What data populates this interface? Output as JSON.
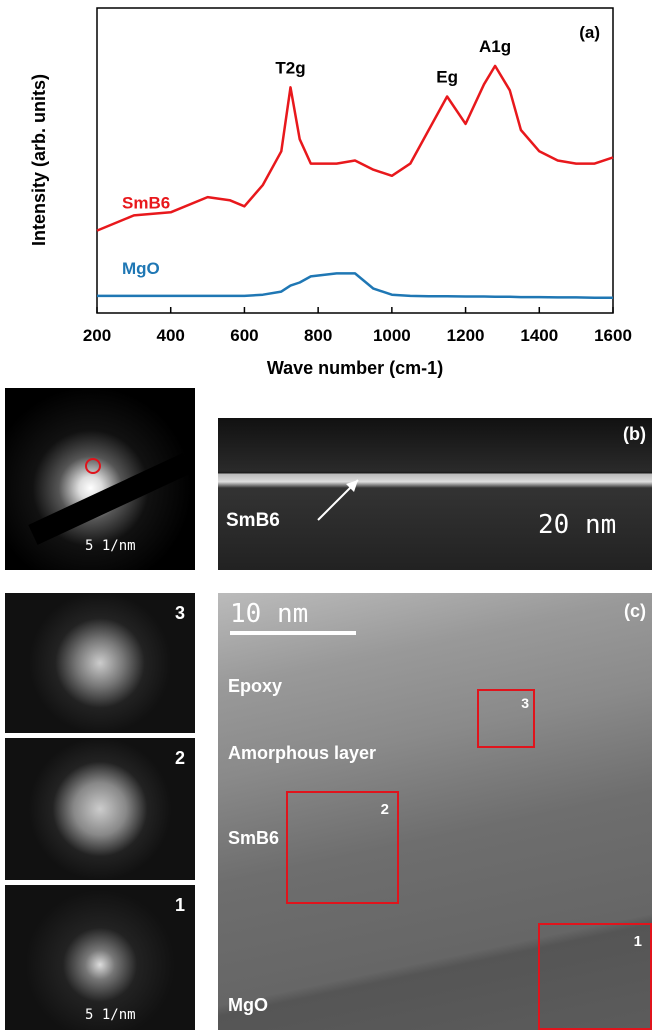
{
  "chart_data": {
    "type": "line",
    "panel_label": "(a)",
    "xlabel": "Wave number (cm-1)",
    "ylabel": "Intensity (arb. units)",
    "xlim": [
      200,
      1600
    ],
    "xticks": [
      200,
      400,
      600,
      800,
      1000,
      1200,
      1400,
      1600
    ],
    "ylim": [
      0,
      100
    ],
    "x": [
      200,
      300,
      400,
      500,
      560,
      600,
      650,
      700,
      725,
      750,
      780,
      850,
      900,
      950,
      1000,
      1050,
      1100,
      1150,
      1200,
      1250,
      1280,
      1320,
      1350,
      1400,
      1450,
      1500,
      1550,
      1600
    ],
    "series": [
      {
        "name": "SmB6",
        "color": "#e8181c",
        "values": [
          27,
          32,
          33,
          38,
          37,
          35,
          42,
          53,
          74,
          57,
          49,
          49,
          50,
          47,
          45,
          49,
          60,
          71,
          62,
          75,
          81,
          73,
          60,
          53,
          50,
          49,
          49,
          51
        ]
      },
      {
        "name": "MgO",
        "color": "#1f77b4",
        "values": [
          5.6,
          5.6,
          5.6,
          5.6,
          5.6,
          5.6,
          6,
          7,
          9,
          10,
          12,
          13,
          13,
          8,
          6,
          5.6,
          5.5,
          5.5,
          5.4,
          5.4,
          5.3,
          5.3,
          5.2,
          5.2,
          5.1,
          5.1,
          5,
          5
        ]
      }
    ],
    "annotations": [
      {
        "text": "T2g",
        "x": 725
      },
      {
        "text": "Eg",
        "x": 1150
      },
      {
        "text": "A1g",
        "x": 1280
      }
    ]
  },
  "figure": {
    "diffraction": {
      "scale": "5 1/nm"
    },
    "panel_b": {
      "label": "(b)",
      "layer": "SmB6",
      "scale": "20 nm"
    },
    "fft": [
      {
        "label": "3"
      },
      {
        "label": "2"
      },
      {
        "label": "1",
        "scale": "5 1/nm"
      }
    ],
    "panel_c": {
      "label": "(c)",
      "scale": "10 nm",
      "regions": [
        "Epoxy",
        "Amorphous layer",
        "SmB6",
        "MgO"
      ],
      "boxes": [
        "3",
        "2",
        "1"
      ]
    }
  }
}
